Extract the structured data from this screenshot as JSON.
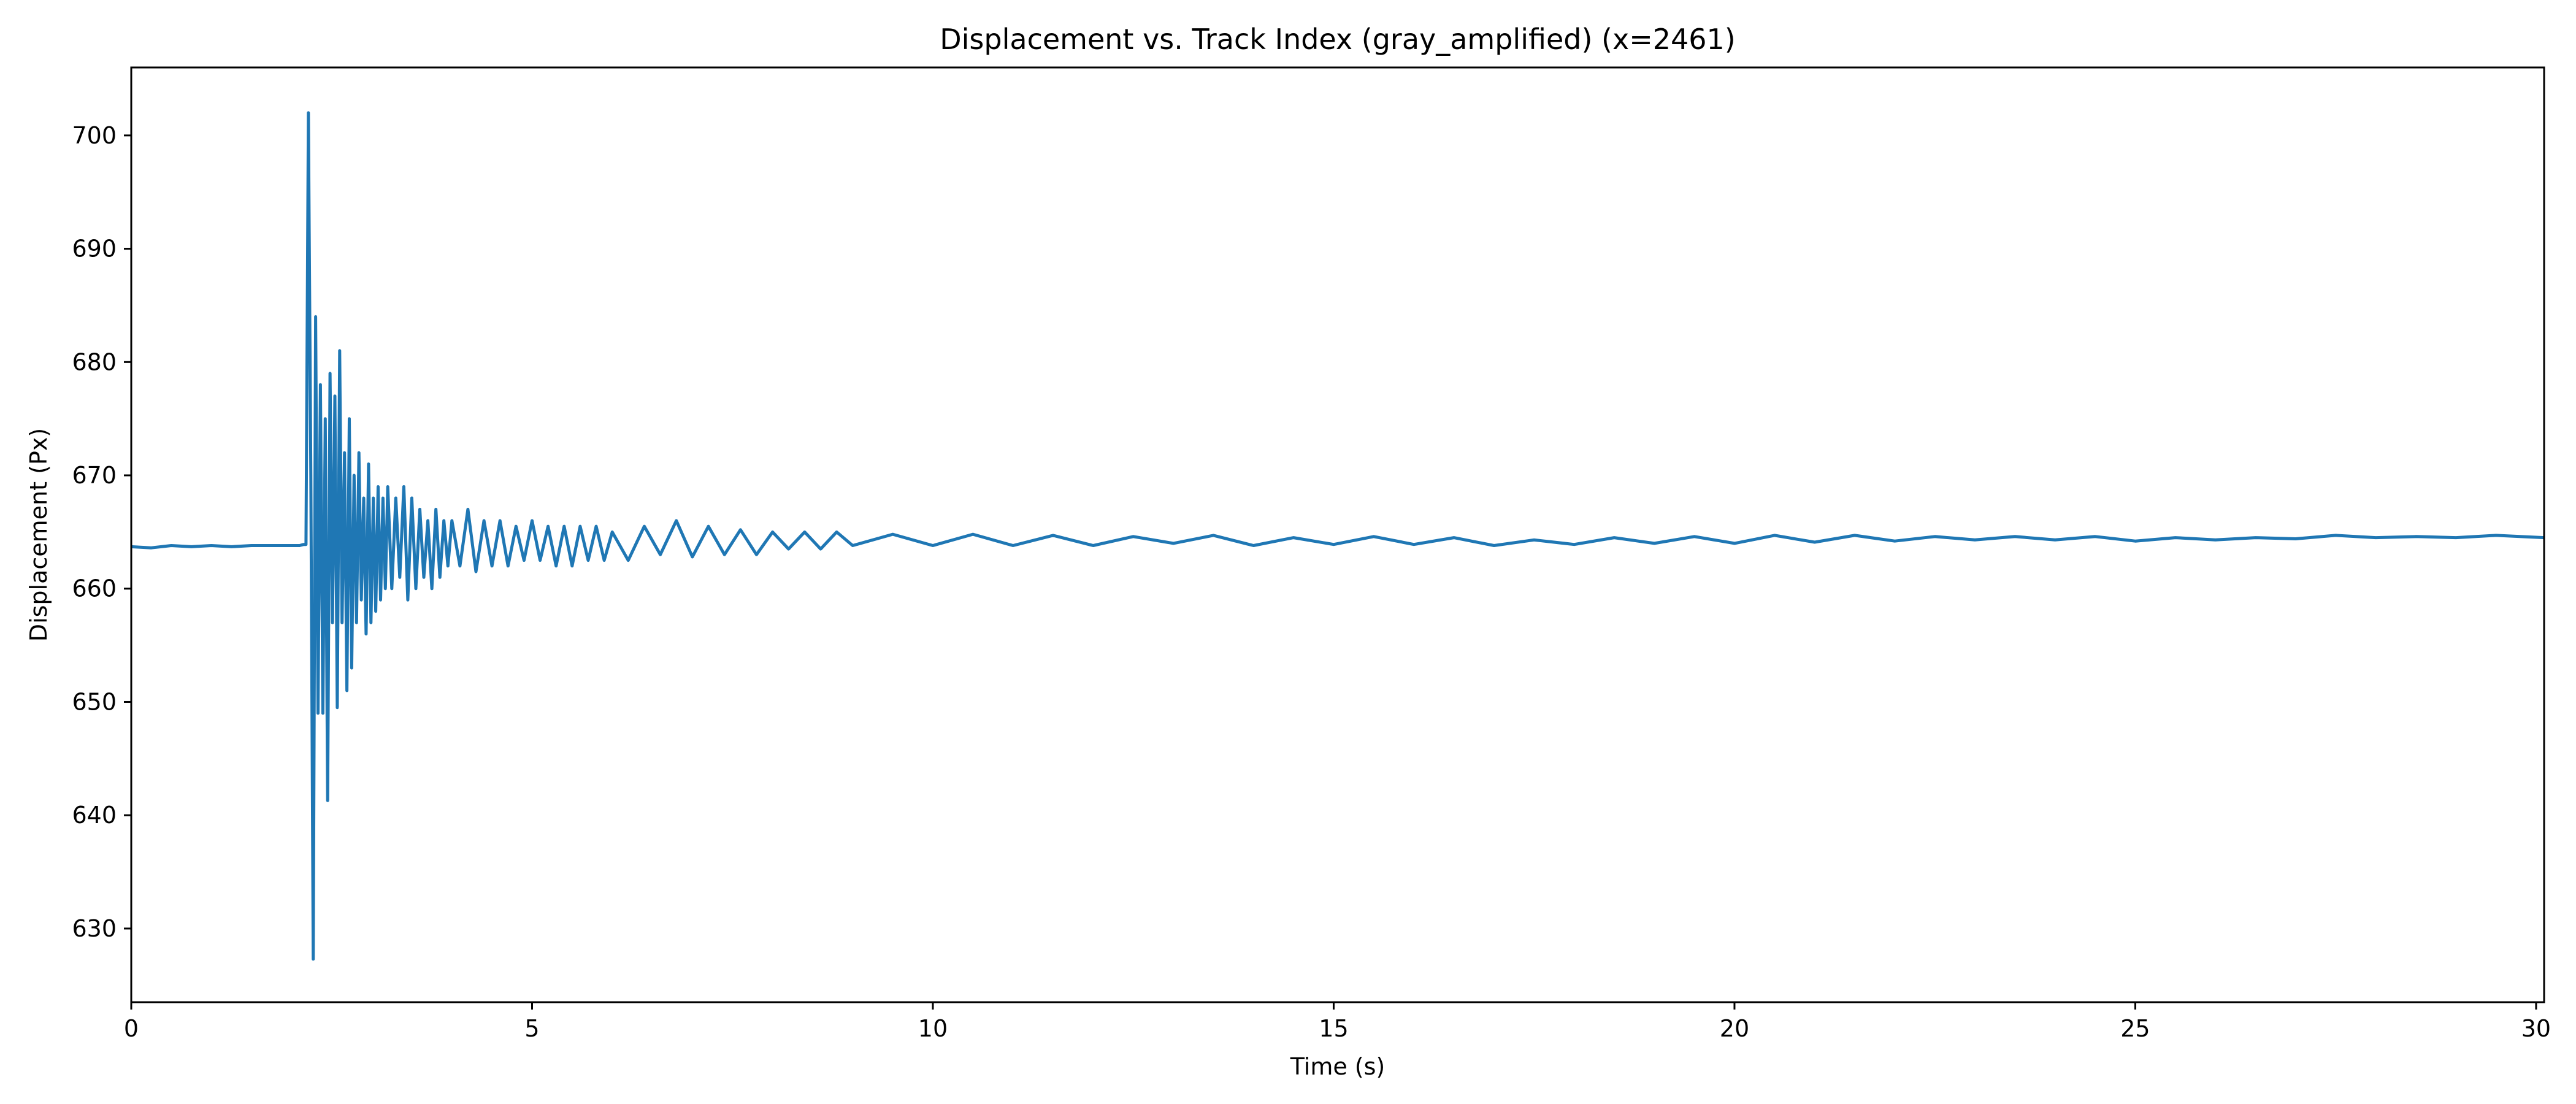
{
  "chart_data": {
    "type": "line",
    "title": "Displacement vs. Track Index (gray_amplified) (x=2461)",
    "xlabel": "Time (s)",
    "ylabel": "Displacement (Px)",
    "xlim": [
      0,
      30.1
    ],
    "ylim": [
      623.5,
      706
    ],
    "xticks": [
      0,
      5,
      10,
      15,
      20,
      25,
      30
    ],
    "yticks": [
      630,
      640,
      650,
      660,
      670,
      680,
      690,
      700
    ],
    "grid": false,
    "legend": "none",
    "line_color": "#1f77b4",
    "series": [
      {
        "x": [
          0,
          0.25,
          0.5,
          0.75,
          1.0,
          1.25,
          1.5,
          1.75,
          2.0,
          2.1,
          2.15,
          2.18,
          2.21,
          2.24,
          2.27,
          2.3,
          2.33,
          2.36,
          2.39,
          2.42,
          2.45,
          2.48,
          2.51,
          2.54,
          2.57,
          2.6,
          2.63,
          2.66,
          2.69,
          2.72,
          2.75,
          2.78,
          2.81,
          2.84,
          2.87,
          2.9,
          2.93,
          2.96,
          2.99,
          3.02,
          3.05,
          3.08,
          3.11,
          3.14,
          3.17,
          3.2,
          3.25,
          3.3,
          3.35,
          3.4,
          3.45,
          3.5,
          3.55,
          3.6,
          3.65,
          3.7,
          3.75,
          3.8,
          3.85,
          3.9,
          3.95,
          4.0,
          4.1,
          4.2,
          4.3,
          4.4,
          4.5,
          4.6,
          4.7,
          4.8,
          4.9,
          5.0,
          5.1,
          5.2,
          5.3,
          5.4,
          5.5,
          5.6,
          5.7,
          5.8,
          5.9,
          6.0,
          6.2,
          6.4,
          6.6,
          6.8,
          7.0,
          7.2,
          7.4,
          7.6,
          7.8,
          8.0,
          8.2,
          8.4,
          8.6,
          8.8,
          9.0,
          9.5,
          10.0,
          10.5,
          11.0,
          11.5,
          12.0,
          12.5,
          13.0,
          13.5,
          14.0,
          14.5,
          15.0,
          15.5,
          16.0,
          16.5,
          17.0,
          17.5,
          18.0,
          18.5,
          19.0,
          19.5,
          20.0,
          20.5,
          21.0,
          21.5,
          22.0,
          22.5,
          23.0,
          23.5,
          24.0,
          24.5,
          25.0,
          25.5,
          26.0,
          26.5,
          27.0,
          27.5,
          28.0,
          28.5,
          29.0,
          29.5,
          30.1
        ],
        "y": [
          663.7,
          663.6,
          663.8,
          663.7,
          663.8,
          663.7,
          663.8,
          663.8,
          663.8,
          663.8,
          663.9,
          663.9,
          702.0,
          670.0,
          627.3,
          684.0,
          649.0,
          678.0,
          649.0,
          675.0,
          641.3,
          679.0,
          657.0,
          677.0,
          649.5,
          681.0,
          657.0,
          672.0,
          651.0,
          675.0,
          653.0,
          670.0,
          657.0,
          672.0,
          659.0,
          668.0,
          656.0,
          671.0,
          657.0,
          668.0,
          658.0,
          669.0,
          659.0,
          668.0,
          660.0,
          669.0,
          660.0,
          668.0,
          661.0,
          669.0,
          659.0,
          668.0,
          660.0,
          667.0,
          661.0,
          666.0,
          660.0,
          667.0,
          661.0,
          666.0,
          662.0,
          666.0,
          662.0,
          667.0,
          661.5,
          666.0,
          662.0,
          666.0,
          662.0,
          665.5,
          662.5,
          666.0,
          662.5,
          665.5,
          662.0,
          665.5,
          662.0,
          665.5,
          662.5,
          665.5,
          662.5,
          665.0,
          662.5,
          665.5,
          663.0,
          666.0,
          662.8,
          665.5,
          663.0,
          665.2,
          663.0,
          665.0,
          663.5,
          665.0,
          663.5,
          665.0,
          663.8,
          664.8,
          663.8,
          664.8,
          663.8,
          664.7,
          663.8,
          664.6,
          664.0,
          664.7,
          663.8,
          664.5,
          663.9,
          664.6,
          663.9,
          664.5,
          663.8,
          664.3,
          663.9,
          664.5,
          664.0,
          664.6,
          664.0,
          664.7,
          664.1,
          664.7,
          664.2,
          664.6,
          664.3,
          664.6,
          664.3,
          664.6,
          664.2,
          664.5,
          664.3,
          664.5,
          664.4,
          664.7,
          664.5,
          664.6,
          664.5,
          664.7,
          664.5
        ]
      }
    ]
  }
}
